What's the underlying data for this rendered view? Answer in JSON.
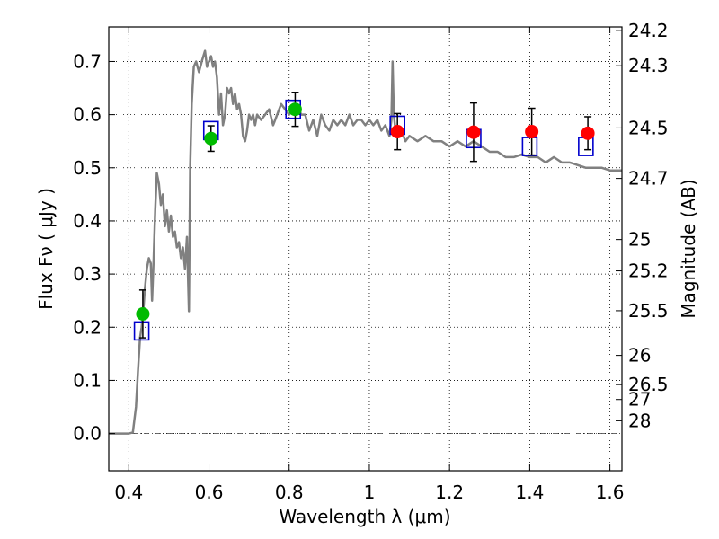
{
  "chart_data": {
    "type": "scatter",
    "xlabel": "Wavelength  λ (μm)",
    "ylabel": "Flux  Fν  ( μJy )",
    "y2label": "Magnitude (AB)",
    "xlim": [
      0.35,
      1.63
    ],
    "ylim": [
      -0.07,
      0.765
    ],
    "x_ticks": [
      0.4,
      0.6,
      0.8,
      1.0,
      1.2,
      1.4,
      1.6
    ],
    "x_tick_labels": [
      "0.4",
      "0.6",
      "0.8",
      "1",
      "1.2",
      "1.4",
      "1.6"
    ],
    "y_ticks": [
      0.0,
      0.1,
      0.2,
      0.3,
      0.4,
      0.5,
      0.6,
      0.7
    ],
    "y_tick_labels": [
      "0.0",
      "0.1",
      "0.2",
      "0.3",
      "0.4",
      "0.5",
      "0.6",
      "0.7"
    ],
    "magnitude_ticks": [
      {
        "label": "24.2",
        "flux": 0.758
      },
      {
        "label": "24.3",
        "flux": 0.692
      },
      {
        "label": "24.5",
        "flux": 0.575
      },
      {
        "label": "24.7",
        "flux": 0.48
      },
      {
        "label": "25",
        "flux": 0.365
      },
      {
        "label": "25.2",
        "flux": 0.306
      },
      {
        "label": "25.5",
        "flux": 0.231
      },
      {
        "label": "26",
        "flux": 0.147
      },
      {
        "label": "26.5",
        "flux": 0.092
      },
      {
        "label": "27",
        "flux": 0.064
      },
      {
        "label": "28",
        "flux": 0.024
      }
    ],
    "grid": true,
    "zero_line": 0.0,
    "colors": {
      "model": "#808080",
      "model_points": "#0000cc",
      "green_points": "#00bb00",
      "red_points": "#ff0000",
      "errorbar": "#000000"
    },
    "model_spectrum": {
      "x": [
        0.35,
        0.4,
        0.41,
        0.418,
        0.423,
        0.428,
        0.432,
        0.436,
        0.44,
        0.445,
        0.45,
        0.455,
        0.458,
        0.462,
        0.466,
        0.47,
        0.475,
        0.48,
        0.485,
        0.49,
        0.495,
        0.5,
        0.505,
        0.51,
        0.515,
        0.52,
        0.525,
        0.53,
        0.535,
        0.54,
        0.545,
        0.55,
        0.553,
        0.557,
        0.562,
        0.568,
        0.575,
        0.582,
        0.59,
        0.595,
        0.6,
        0.605,
        0.61,
        0.615,
        0.62,
        0.625,
        0.63,
        0.635,
        0.64,
        0.645,
        0.65,
        0.655,
        0.66,
        0.665,
        0.67,
        0.675,
        0.68,
        0.685,
        0.69,
        0.695,
        0.7,
        0.705,
        0.71,
        0.715,
        0.72,
        0.73,
        0.74,
        0.75,
        0.76,
        0.77,
        0.78,
        0.79,
        0.8,
        0.81,
        0.82,
        0.83,
        0.84,
        0.85,
        0.86,
        0.87,
        0.88,
        0.89,
        0.9,
        0.91,
        0.92,
        0.93,
        0.94,
        0.95,
        0.96,
        0.97,
        0.98,
        0.99,
        1.0,
        1.01,
        1.02,
        1.03,
        1.04,
        1.05,
        1.055,
        1.058,
        1.061,
        1.065,
        1.07,
        1.08,
        1.09,
        1.1,
        1.12,
        1.14,
        1.16,
        1.18,
        1.2,
        1.22,
        1.24,
        1.26,
        1.28,
        1.3,
        1.32,
        1.34,
        1.36,
        1.38,
        1.4,
        1.42,
        1.44,
        1.46,
        1.48,
        1.5,
        1.52,
        1.54,
        1.56,
        1.58,
        1.6,
        1.63
      ],
      "y": [
        0.0,
        0.0,
        0.002,
        0.05,
        0.12,
        0.18,
        0.2,
        0.23,
        0.27,
        0.31,
        0.33,
        0.32,
        0.25,
        0.33,
        0.42,
        0.49,
        0.47,
        0.43,
        0.45,
        0.39,
        0.42,
        0.38,
        0.41,
        0.37,
        0.38,
        0.35,
        0.36,
        0.33,
        0.35,
        0.31,
        0.37,
        0.23,
        0.5,
        0.62,
        0.69,
        0.7,
        0.68,
        0.7,
        0.72,
        0.69,
        0.7,
        0.71,
        0.69,
        0.7,
        0.67,
        0.6,
        0.64,
        0.58,
        0.6,
        0.65,
        0.64,
        0.65,
        0.62,
        0.64,
        0.61,
        0.62,
        0.6,
        0.56,
        0.55,
        0.57,
        0.6,
        0.59,
        0.6,
        0.58,
        0.6,
        0.59,
        0.6,
        0.61,
        0.58,
        0.6,
        0.62,
        0.61,
        0.6,
        0.61,
        0.62,
        0.6,
        0.6,
        0.57,
        0.59,
        0.56,
        0.6,
        0.58,
        0.57,
        0.59,
        0.58,
        0.59,
        0.58,
        0.6,
        0.58,
        0.59,
        0.59,
        0.58,
        0.59,
        0.58,
        0.59,
        0.57,
        0.58,
        0.56,
        0.59,
        0.7,
        0.6,
        0.57,
        0.56,
        0.57,
        0.55,
        0.56,
        0.55,
        0.56,
        0.55,
        0.55,
        0.54,
        0.55,
        0.54,
        0.55,
        0.54,
        0.53,
        0.53,
        0.52,
        0.52,
        0.525,
        0.52,
        0.52,
        0.51,
        0.52,
        0.51,
        0.51,
        0.505,
        0.5,
        0.5,
        0.5,
        0.495,
        0.495
      ]
    },
    "series": [
      {
        "marker": "square",
        "x": [
          0.432,
          0.605,
          0.81,
          1.07,
          1.26,
          1.4,
          1.54
        ],
        "y": [
          0.193,
          0.57,
          0.61,
          0.58,
          0.555,
          0.54,
          0.54
        ]
      },
      {
        "marker": "circle-green",
        "x": [
          0.435,
          0.605,
          0.815
        ],
        "y": [
          0.225,
          0.555,
          0.61
        ],
        "yerr": [
          0.045,
          0.024,
          0.032
        ]
      },
      {
        "marker": "circle-red",
        "x": [
          1.07,
          1.26,
          1.405,
          1.545
        ],
        "y": [
          0.568,
          0.567,
          0.568,
          0.565
        ],
        "yerr": [
          0.034,
          0.055,
          0.044,
          0.031
        ]
      }
    ]
  }
}
